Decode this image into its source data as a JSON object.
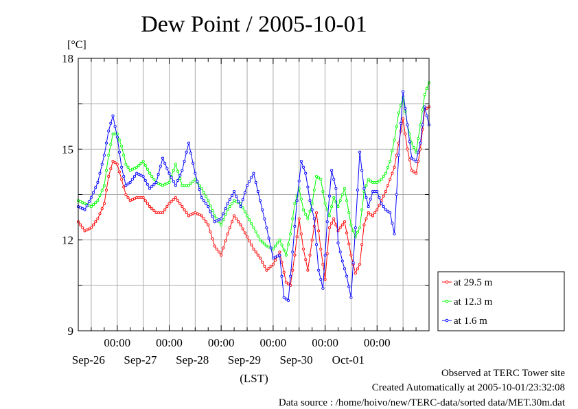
{
  "title": "Dew Point / 2005-10-01",
  "chart_data": {
    "type": "line",
    "title": "Dew Point / 2005-10-01",
    "ylabel": "[°C]",
    "xlabel": "(LST)",
    "ylim": [
      9,
      18
    ],
    "y_ticks": [
      "18",
      "15",
      "12",
      "9"
    ],
    "y_tick_values": [
      18,
      15,
      12,
      9
    ],
    "x_range": [
      "2005-09-25T06:00",
      "2005-10-01T24:00"
    ],
    "x_ticks": [
      {
        "time": "2005-09-26T00:00",
        "label": "00:00",
        "date": "Sep-26"
      },
      {
        "time": "2005-09-27T00:00",
        "label": "00:00",
        "date": "Sep-27"
      },
      {
        "time": "2005-09-28T00:00",
        "label": "00:00",
        "date": "Sep-28"
      },
      {
        "time": "2005-09-29T00:00",
        "label": "00:00",
        "date": "Sep-29"
      },
      {
        "time": "2005-09-30T00:00",
        "label": "00:00",
        "date": "Sep-30"
      },
      {
        "time": "2005-10-01T00:00",
        "label": "00:00",
        "date": "Oct-01"
      }
    ],
    "grid": true,
    "legend_position": "right-bottom outside",
    "series": [
      {
        "name": "at 29.5 m",
        "color": "#ff0000",
        "points": [
          [
            "2005-09-25T06:00",
            12.6
          ],
          [
            "2005-09-25T09:00",
            12.3
          ],
          [
            "2005-09-25T12:00",
            12.4
          ],
          [
            "2005-09-25T15:00",
            12.7
          ],
          [
            "2005-09-25T18:00",
            13.2
          ],
          [
            "2005-09-25T20:00",
            14.1
          ],
          [
            "2005-09-25T22:00",
            14.6
          ],
          [
            "2005-09-26T00:00",
            14.5
          ],
          [
            "2005-09-26T02:00",
            14.0
          ],
          [
            "2005-09-26T04:00",
            13.5
          ],
          [
            "2005-09-26T06:00",
            13.3
          ],
          [
            "2005-09-26T09:00",
            13.4
          ],
          [
            "2005-09-26T12:00",
            13.4
          ],
          [
            "2005-09-26T15:00",
            13.1
          ],
          [
            "2005-09-26T18:00",
            12.9
          ],
          [
            "2005-09-26T21:00",
            12.9
          ],
          [
            "2005-09-27T00:00",
            13.2
          ],
          [
            "2005-09-27T03:00",
            13.4
          ],
          [
            "2005-09-27T06:00",
            13.1
          ],
          [
            "2005-09-27T09:00",
            12.8
          ],
          [
            "2005-09-27T12:00",
            12.9
          ],
          [
            "2005-09-27T15:00",
            12.8
          ],
          [
            "2005-09-27T18:00",
            12.5
          ],
          [
            "2005-09-27T21:00",
            11.8
          ],
          [
            "2005-09-28T00:00",
            11.5
          ],
          [
            "2005-09-28T03:00",
            12.2
          ],
          [
            "2005-09-28T06:00",
            12.8
          ],
          [
            "2005-09-28T09:00",
            12.5
          ],
          [
            "2005-09-28T12:00",
            12.1
          ],
          [
            "2005-09-28T15:00",
            11.7
          ],
          [
            "2005-09-28T18:00",
            11.4
          ],
          [
            "2005-09-28T21:00",
            11.0
          ],
          [
            "2005-09-29T00:00",
            11.2
          ],
          [
            "2005-09-29T03:00",
            11.6
          ],
          [
            "2005-09-29T06:00",
            10.6
          ],
          [
            "2005-09-29T08:00",
            10.5
          ],
          [
            "2005-09-29T10:00",
            11.5
          ],
          [
            "2005-09-29T12:00",
            12.7
          ],
          [
            "2005-09-29T14:00",
            11.7
          ],
          [
            "2005-09-29T16:00",
            11.0
          ],
          [
            "2005-09-29T18:00",
            12.0
          ],
          [
            "2005-09-29T20:00",
            12.9
          ],
          [
            "2005-09-29T22:00",
            11.7
          ],
          [
            "2005-09-30T00:00",
            10.7
          ],
          [
            "2005-09-30T02:00",
            12.4
          ],
          [
            "2005-09-30T04:00",
            12.7
          ],
          [
            "2005-09-30T06:00",
            12.3
          ],
          [
            "2005-09-30T09:00",
            12.6
          ],
          [
            "2005-09-30T12:00",
            11.5
          ],
          [
            "2005-09-30T14:00",
            10.9
          ],
          [
            "2005-09-30T16:00",
            11.2
          ],
          [
            "2005-09-30T18:00",
            12.5
          ],
          [
            "2005-09-30T20:00",
            12.9
          ],
          [
            "2005-09-30T22:00",
            12.8
          ],
          [
            "2005-10-01T00:00",
            13.0
          ],
          [
            "2005-10-01T02:00",
            13.3
          ],
          [
            "2005-10-01T04:00",
            13.6
          ],
          [
            "2005-10-01T06:00",
            14.0
          ],
          [
            "2005-10-01T08:00",
            14.4
          ],
          [
            "2005-10-01T10:00",
            15.2
          ],
          [
            "2005-10-01T12:00",
            16.0
          ],
          [
            "2005-10-01T14:00",
            15.0
          ],
          [
            "2005-10-01T16:00",
            14.3
          ],
          [
            "2005-10-01T18:00",
            14.2
          ],
          [
            "2005-10-01T20:00",
            15.0
          ],
          [
            "2005-10-01T22:00",
            16.3
          ],
          [
            "2005-10-01T24:00",
            16.4
          ]
        ]
      },
      {
        "name": "at 12.3 m",
        "color": "#00ff00",
        "points": [
          [
            "2005-09-25T06:00",
            13.3
          ],
          [
            "2005-09-25T09:00",
            13.2
          ],
          [
            "2005-09-25T12:00",
            13.1
          ],
          [
            "2005-09-25T15:00",
            13.3
          ],
          [
            "2005-09-25T18:00",
            13.8
          ],
          [
            "2005-09-25T20:00",
            14.8
          ],
          [
            "2005-09-25T22:00",
            15.5
          ],
          [
            "2005-09-26T00:00",
            15.5
          ],
          [
            "2005-09-26T02:00",
            15.1
          ],
          [
            "2005-09-26T04:00",
            14.5
          ],
          [
            "2005-09-26T06:00",
            14.3
          ],
          [
            "2005-09-26T09:00",
            14.4
          ],
          [
            "2005-09-26T12:00",
            14.6
          ],
          [
            "2005-09-26T15:00",
            14.2
          ],
          [
            "2005-09-26T18:00",
            13.9
          ],
          [
            "2005-09-26T21:00",
            13.8
          ],
          [
            "2005-09-27T00:00",
            13.9
          ],
          [
            "2005-09-27T03:00",
            14.5
          ],
          [
            "2005-09-27T06:00",
            13.8
          ],
          [
            "2005-09-27T09:00",
            13.8
          ],
          [
            "2005-09-27T12:00",
            14.0
          ],
          [
            "2005-09-27T15:00",
            13.7
          ],
          [
            "2005-09-27T18:00",
            13.3
          ],
          [
            "2005-09-27T21:00",
            12.8
          ],
          [
            "2005-09-28T00:00",
            12.5
          ],
          [
            "2005-09-28T03:00",
            13.0
          ],
          [
            "2005-09-28T06:00",
            13.3
          ],
          [
            "2005-09-28T09:00",
            13.2
          ],
          [
            "2005-09-28T12:00",
            12.8
          ],
          [
            "2005-09-28T15:00",
            12.4
          ],
          [
            "2005-09-28T18:00",
            12.0
          ],
          [
            "2005-09-28T21:00",
            11.8
          ],
          [
            "2005-09-29T00:00",
            11.7
          ],
          [
            "2005-09-29T03:00",
            12.0
          ],
          [
            "2005-09-29T06:00",
            11.5
          ],
          [
            "2005-09-29T08:00",
            12.2
          ],
          [
            "2005-09-29T10:00",
            13.2
          ],
          [
            "2005-09-29T12:00",
            13.7
          ],
          [
            "2005-09-29T14:00",
            13.0
          ],
          [
            "2005-09-29T16:00",
            12.7
          ],
          [
            "2005-09-29T18:00",
            13.2
          ],
          [
            "2005-09-29T20:00",
            14.1
          ],
          [
            "2005-09-29T22:00",
            14.0
          ],
          [
            "2005-09-30T00:00",
            13.2
          ],
          [
            "2005-09-30T02:00",
            12.8
          ],
          [
            "2005-09-30T04:00",
            13.4
          ],
          [
            "2005-09-30T06:00",
            13.1
          ],
          [
            "2005-09-30T09:00",
            13.7
          ],
          [
            "2005-09-30T12:00",
            12.5
          ],
          [
            "2005-09-30T14:00",
            12.1
          ],
          [
            "2005-09-30T16:00",
            12.4
          ],
          [
            "2005-09-30T18:00",
            13.6
          ],
          [
            "2005-09-30T20:00",
            14.0
          ],
          [
            "2005-09-30T22:00",
            13.9
          ],
          [
            "2005-10-01T00:00",
            13.9
          ],
          [
            "2005-10-01T02:00",
            14.0
          ],
          [
            "2005-10-01T04:00",
            14.2
          ],
          [
            "2005-10-01T06:00",
            14.6
          ],
          [
            "2005-10-01T08:00",
            15.3
          ],
          [
            "2005-10-01T10:00",
            16.2
          ],
          [
            "2005-10-01T12:00",
            16.7
          ],
          [
            "2005-10-01T14:00",
            15.8
          ],
          [
            "2005-10-01T16:00",
            15.2
          ],
          [
            "2005-10-01T18:00",
            14.9
          ],
          [
            "2005-10-01T20:00",
            15.8
          ],
          [
            "2005-10-01T22:00",
            16.8
          ],
          [
            "2005-10-01T24:00",
            17.2
          ]
        ]
      },
      {
        "name": "at 1.6 m",
        "color": "#0000ff",
        "points": [
          [
            "2005-09-25T06:00",
            13.1
          ],
          [
            "2005-09-25T09:00",
            13.0
          ],
          [
            "2005-09-25T12:00",
            13.4
          ],
          [
            "2005-09-25T15:00",
            13.9
          ],
          [
            "2005-09-25T18:00",
            14.8
          ],
          [
            "2005-09-25T20:00",
            15.6
          ],
          [
            "2005-09-25T22:00",
            16.1
          ],
          [
            "2005-09-26T00:00",
            15.4
          ],
          [
            "2005-09-26T02:00",
            14.4
          ],
          [
            "2005-09-26T04:00",
            13.8
          ],
          [
            "2005-09-26T06:00",
            13.9
          ],
          [
            "2005-09-26T09:00",
            14.2
          ],
          [
            "2005-09-26T12:00",
            14.1
          ],
          [
            "2005-09-26T15:00",
            13.7
          ],
          [
            "2005-09-26T18:00",
            13.9
          ],
          [
            "2005-09-26T21:00",
            14.7
          ],
          [
            "2005-09-27T00:00",
            14.2
          ],
          [
            "2005-09-27T03:00",
            13.8
          ],
          [
            "2005-09-27T06:00",
            14.3
          ],
          [
            "2005-09-27T09:00",
            15.2
          ],
          [
            "2005-09-27T12:00",
            14.2
          ],
          [
            "2005-09-27T15:00",
            13.4
          ],
          [
            "2005-09-27T18:00",
            13.1
          ],
          [
            "2005-09-27T21:00",
            12.6
          ],
          [
            "2005-09-28T00:00",
            12.7
          ],
          [
            "2005-09-28T03:00",
            13.2
          ],
          [
            "2005-09-28T06:00",
            13.6
          ],
          [
            "2005-09-28T09:00",
            13.1
          ],
          [
            "2005-09-28T12:00",
            13.8
          ],
          [
            "2005-09-28T15:00",
            14.2
          ],
          [
            "2005-09-28T18:00",
            13.3
          ],
          [
            "2005-09-28T21:00",
            12.4
          ],
          [
            "2005-09-29T00:00",
            11.4
          ],
          [
            "2005-09-29T03:00",
            11.5
          ],
          [
            "2005-09-29T05:00",
            10.1
          ],
          [
            "2005-09-29T07:00",
            10.0
          ],
          [
            "2005-09-29T09:00",
            11.6
          ],
          [
            "2005-09-29T11:00",
            13.3
          ],
          [
            "2005-09-29T13:00",
            14.6
          ],
          [
            "2005-09-29T15:00",
            14.2
          ],
          [
            "2005-09-29T17:00",
            13.3
          ],
          [
            "2005-09-29T19:00",
            12.7
          ],
          [
            "2005-09-29T21:00",
            11.0
          ],
          [
            "2005-09-29T23:00",
            10.4
          ],
          [
            "2005-09-30T01:00",
            12.6
          ],
          [
            "2005-09-30T03:00",
            14.3
          ],
          [
            "2005-09-30T05:00",
            13.7
          ],
          [
            "2005-09-30T06:00",
            11.9
          ],
          [
            "2005-09-30T08:00",
            11.3
          ],
          [
            "2005-09-30T10:00",
            10.8
          ],
          [
            "2005-09-30T12:00",
            10.1
          ],
          [
            "2005-09-30T14:00",
            12.4
          ],
          [
            "2005-09-30T16:00",
            14.9
          ],
          [
            "2005-09-30T18:00",
            13.7
          ],
          [
            "2005-09-30T20:00",
            13.1
          ],
          [
            "2005-09-30T22:00",
            13.6
          ],
          [
            "2005-10-01T00:00",
            13.6
          ],
          [
            "2005-10-01T02:00",
            13.2
          ],
          [
            "2005-10-01T04:00",
            13.0
          ],
          [
            "2005-10-01T06:00",
            12.9
          ],
          [
            "2005-10-01T08:00",
            12.2
          ],
          [
            "2005-10-01T10:00",
            14.8
          ],
          [
            "2005-10-01T12:00",
            16.9
          ],
          [
            "2005-10-01T14:00",
            15.8
          ],
          [
            "2005-10-01T16:00",
            14.7
          ],
          [
            "2005-10-01T18:00",
            14.6
          ],
          [
            "2005-10-01T20:00",
            15.2
          ],
          [
            "2005-10-01T22:00",
            16.4
          ],
          [
            "2005-10-01T24:00",
            15.8
          ]
        ]
      }
    ]
  },
  "footer": {
    "line1": "Observed at TERC Tower site",
    "line2": "Created Automatically at 2005-10-01/23:32:08",
    "line3": "Data source : /home/hoivo/new/TERC-data/sorted  data/MET.30m.dat"
  }
}
